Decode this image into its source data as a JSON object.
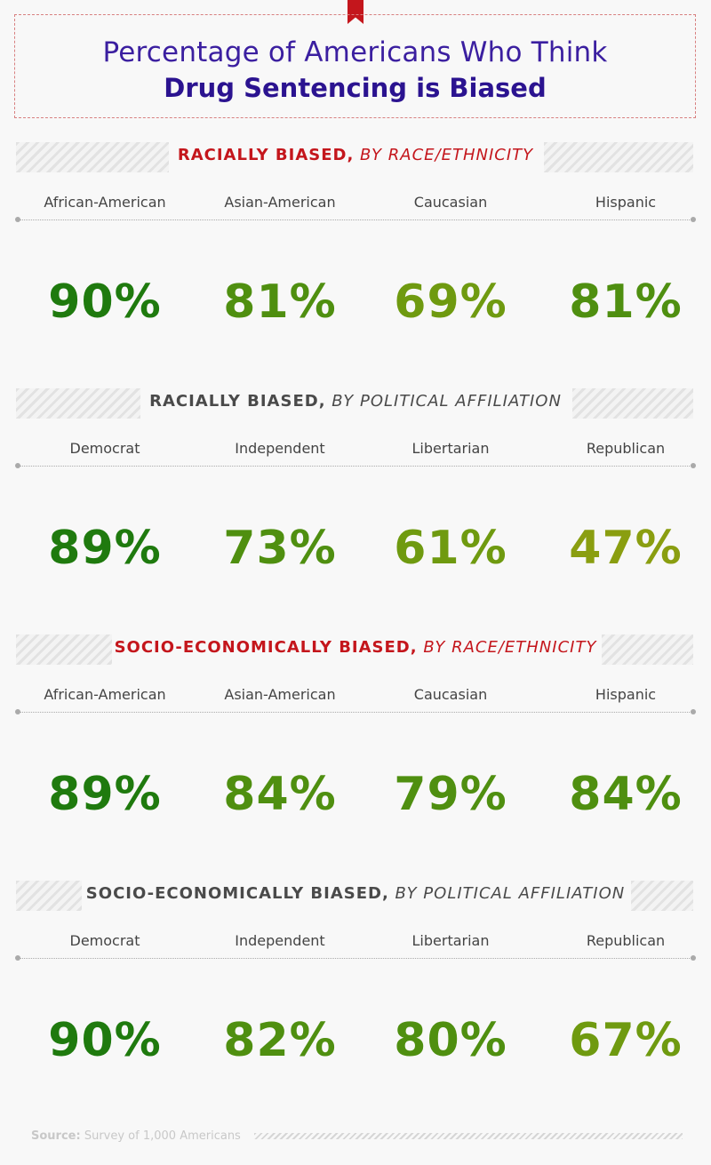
{
  "title": {
    "line1": "Percentage of Americans Who Think",
    "line2": "Drug Sentencing is Biased"
  },
  "colors": {
    "title": "#3b1fa0",
    "heading_red": "#c4161c",
    "heading_gray": "#4a4a4a",
    "value_scale": [
      "#1f7a0e",
      "#4f8f10",
      "#6f9a10",
      "#8a9e10"
    ]
  },
  "chart_data": [
    {
      "type": "table",
      "title_bold": "RACIALLY BIASED,",
      "title_italic": "BY RACE/ETHNICITY",
      "categories": [
        "African-American",
        "Asian-American",
        "Caucasian",
        "Hispanic"
      ],
      "values": [
        90,
        81,
        69,
        81
      ],
      "labels": [
        "90%",
        "81%",
        "69%",
        "81%"
      ],
      "unit": "%"
    },
    {
      "type": "table",
      "title_bold": "RACIALLY BIASED,",
      "title_italic": "BY POLITICAL AFFILIATION",
      "categories": [
        "Democrat",
        "Independent",
        "Libertarian",
        "Republican"
      ],
      "values": [
        89,
        73,
        61,
        47
      ],
      "labels": [
        "89%",
        "73%",
        "61%",
        "47%"
      ],
      "unit": "%"
    },
    {
      "type": "table",
      "title_bold": "SOCIO-ECONOMICALLY BIASED,",
      "title_italic": "BY RACE/ETHNICITY",
      "categories": [
        "African-American",
        "Asian-American",
        "Caucasian",
        "Hispanic"
      ],
      "values": [
        89,
        84,
        79,
        84
      ],
      "labels": [
        "89%",
        "84%",
        "79%",
        "84%"
      ],
      "unit": "%"
    },
    {
      "type": "table",
      "title_bold": "SOCIO-ECONOMICALLY BIASED,",
      "title_italic": "BY POLITICAL AFFILIATION",
      "categories": [
        "Democrat",
        "Independent",
        "Libertarian",
        "Republican"
      ],
      "values": [
        90,
        82,
        80,
        67
      ],
      "labels": [
        "90%",
        "82%",
        "80%",
        "67%"
      ],
      "unit": "%"
    }
  ],
  "source": {
    "label": "Source:",
    "text": "Survey of 1,000 Americans"
  }
}
